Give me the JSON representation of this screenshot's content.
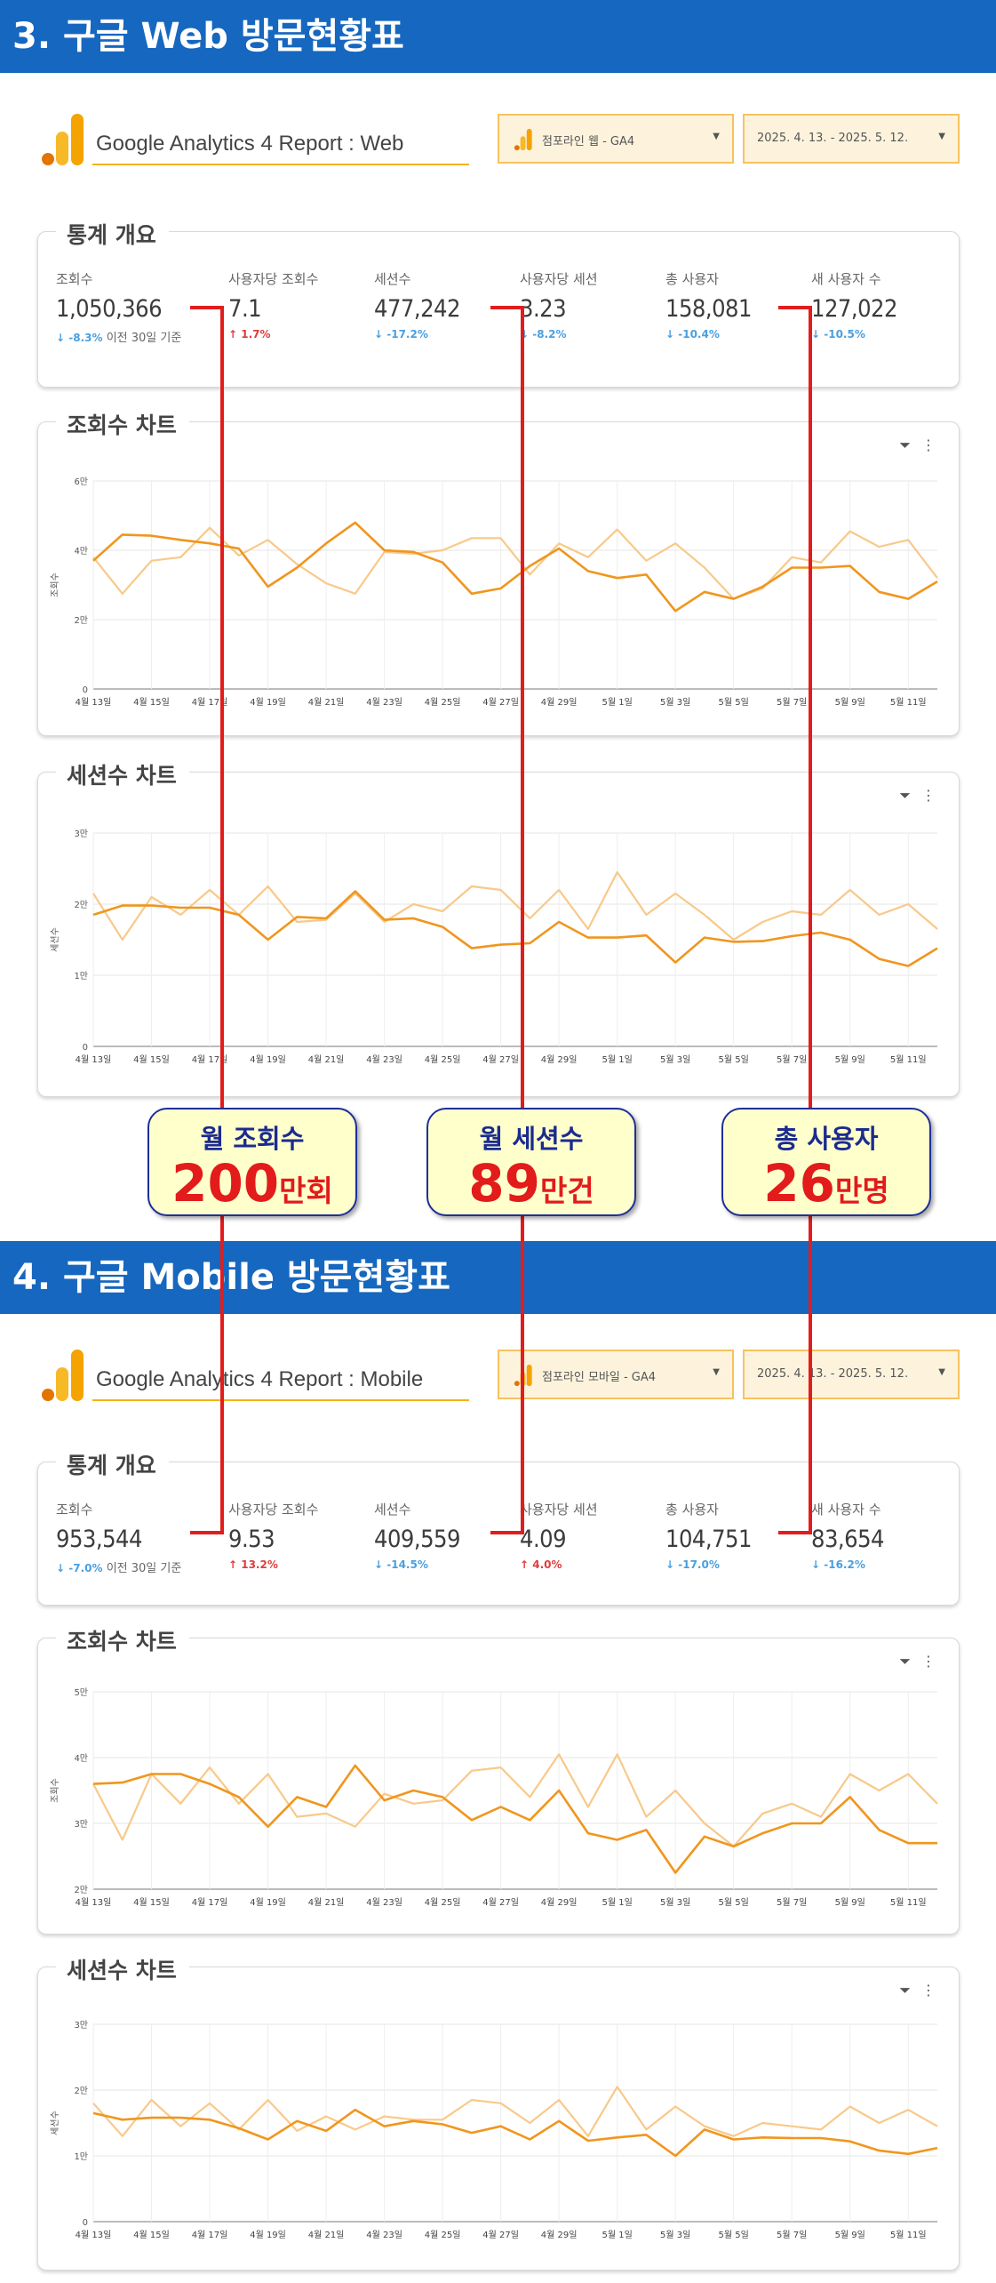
{
  "sections": [
    {
      "banner": "3. 구글 Web 방문현황표",
      "report_title": "Google Analytics 4 Report : Web",
      "property_select": "점포라인 웹 - GA4",
      "date_select": "2025. 4. 13. - 2025. 5. 12.",
      "overview_title": "통계 개요",
      "stats": [
        {
          "label": "조회수",
          "value": "1,050,366",
          "change": "↓ -8.3%",
          "dir": "down",
          "compare": "이전 30일 기준"
        },
        {
          "label": "사용자당 조회수",
          "value": "7.1",
          "change": "↑ 1.7%",
          "dir": "up",
          "compare": ""
        },
        {
          "label": "세션수",
          "value": "477,242",
          "change": "↓ -17.2%",
          "dir": "down",
          "compare": ""
        },
        {
          "label": "사용자당 세션",
          "value": "3.23",
          "change": "↓ -8.2%",
          "dir": "down",
          "compare": ""
        },
        {
          "label": "총 사용자",
          "value": "158,081",
          "change": "↓ -10.4%",
          "dir": "down",
          "compare": ""
        },
        {
          "label": "새 사용자 수",
          "value": "127,022",
          "change": "↓ -10.5%",
          "dir": "down",
          "compare": ""
        }
      ]
    },
    {
      "banner": "4. 구글 Mobile 방문현황표",
      "report_title": "Google Analytics 4 Report : Mobile",
      "property_select": "점포라인 모바일 - GA4",
      "date_select": "2025. 4. 13. - 2025. 5. 12.",
      "overview_title": "통계 개요",
      "stats": [
        {
          "label": "조회수",
          "value": "953,544",
          "change": "↓ -7.0%",
          "dir": "down",
          "compare": "이전 30일 기준"
        },
        {
          "label": "사용자당 조회수",
          "value": "9.53",
          "change": "↑ 13.2%",
          "dir": "up",
          "compare": ""
        },
        {
          "label": "세션수",
          "value": "409,559",
          "change": "↓ -14.5%",
          "dir": "down",
          "compare": ""
        },
        {
          "label": "사용자당 세션",
          "value": "4.09",
          "change": "↑ 4.0%",
          "dir": "up",
          "compare": ""
        },
        {
          "label": "총 사용자",
          "value": "104,751",
          "change": "↓ -17.0%",
          "dir": "down",
          "compare": ""
        },
        {
          "label": "새 사용자 수",
          "value": "83,654",
          "change": "↓ -16.2%",
          "dir": "down",
          "compare": ""
        }
      ]
    }
  ],
  "callouts": [
    {
      "title": "월 조회수",
      "number": "200",
      "unit": "만회"
    },
    {
      "title": "월 세션수",
      "number": "89",
      "unit": "만건"
    },
    {
      "title": "총 사용자",
      "number": "26",
      "unit": "만명"
    }
  ],
  "colors": {
    "banner": "#1667bf",
    "current_line": "#f0961e",
    "previous_line": "#f8c98a",
    "callout_text": "#e21b1b",
    "callout_border": "#1e2f99",
    "connector": "#e11d1d"
  },
  "icons": {
    "filter": "filter-icon",
    "more": "more-vert-icon"
  },
  "chart_data": [
    {
      "type": "line",
      "title": "조회수 차트",
      "ylabel": "조회수",
      "ylim": [
        0,
        60000
      ],
      "yticks": [
        0,
        20000,
        40000,
        60000
      ],
      "ytick_labels": [
        "0",
        "2만",
        "4만",
        "6만"
      ],
      "x": [
        "4월 13일",
        "4월 14일",
        "4월 15일",
        "4월 16일",
        "4월 17일",
        "4월 18일",
        "4월 19일",
        "4월 20일",
        "4월 21일",
        "4월 22일",
        "4월 23일",
        "4월 24일",
        "4월 25일",
        "4월 26일",
        "4월 27일",
        "4월 28일",
        "4월 29일",
        "4월 30일",
        "5월 1일",
        "5월 2일",
        "5월 3일",
        "5월 4일",
        "5월 5일",
        "5월 6일",
        "5월 7일",
        "5월 8일",
        "5월 9일",
        "5월 10일",
        "5월 11일",
        "5월 12일"
      ],
      "xtick_labels": [
        "4월 13일",
        "4월 15일",
        "4월 17일",
        "4월 19일",
        "4월 21일",
        "4월 23일",
        "4월 25일",
        "4월 27일",
        "4월 29일",
        "5월 1일",
        "5월 3일",
        "5월 5일",
        "5월 7일",
        "5월 9일",
        "5월 11일"
      ],
      "series": [
        {
          "values": [
            37000,
            44500,
            44200,
            43000,
            42000,
            40500,
            29500,
            35000,
            42000,
            48000,
            40000,
            39500,
            36500,
            27500,
            29000,
            35500,
            40500,
            34000,
            32000,
            33000,
            22500,
            28000,
            26000,
            29500,
            35000,
            35000,
            35500,
            28000,
            26000,
            31000
          ]
        },
        {
          "values": [
            38000,
            27500,
            37000,
            38000,
            46500,
            38500,
            43000,
            36000,
            30500,
            27500,
            39500,
            39000,
            40000,
            43500,
            43500,
            33000,
            42000,
            38000,
            46000,
            37000,
            42000,
            35000,
            26000,
            29000,
            38000,
            36500,
            45500,
            41000,
            43000,
            32000
          ]
        }
      ]
    },
    {
      "type": "line",
      "title": "세션수 차트",
      "ylabel": "세션수",
      "ylim": [
        0,
        30000
      ],
      "yticks": [
        0,
        10000,
        20000,
        30000
      ],
      "ytick_labels": [
        "0",
        "1만",
        "2만",
        "3만"
      ],
      "x": [
        "4월 13일",
        "4월 14일",
        "4월 15일",
        "4월 16일",
        "4월 17일",
        "4월 18일",
        "4월 19일",
        "4월 20일",
        "4월 21일",
        "4월 22일",
        "4월 23일",
        "4월 24일",
        "4월 25일",
        "4월 26일",
        "4월 27일",
        "4월 28일",
        "4월 29일",
        "4월 30일",
        "5월 1일",
        "5월 2일",
        "5월 3일",
        "5월 4일",
        "5월 5일",
        "5월 6일",
        "5월 7일",
        "5월 8일",
        "5월 9일",
        "5월 10일",
        "5월 11일",
        "5월 12일"
      ],
      "xtick_labels": [
        "4월 13일",
        "4월 15일",
        "4월 17일",
        "4월 19일",
        "4월 21일",
        "4월 23일",
        "4월 25일",
        "4월 27일",
        "4월 29일",
        "5월 1일",
        "5월 3일",
        "5월 5일",
        "5월 7일",
        "5월 9일",
        "5월 11일"
      ],
      "series": [
        {
          "values": [
            18500,
            19800,
            19800,
            19500,
            19500,
            18500,
            15000,
            18200,
            18000,
            21800,
            17800,
            18000,
            16800,
            13800,
            14300,
            14500,
            17500,
            15300,
            15300,
            15600,
            11800,
            15300,
            14700,
            14800,
            15500,
            16000,
            15000,
            12300,
            11300,
            13800
          ]
        },
        {
          "values": [
            21500,
            15000,
            21000,
            18500,
            22000,
            18500,
            22500,
            17500,
            17800,
            21500,
            17500,
            20000,
            19000,
            22500,
            22000,
            18000,
            22000,
            16500,
            24500,
            18500,
            21500,
            18500,
            15000,
            17500,
            19000,
            18500,
            22000,
            18500,
            20000,
            16500
          ]
        }
      ]
    },
    {
      "type": "line",
      "title": "조회수 차트",
      "ylabel": "조회수",
      "ylim": [
        20000,
        50000
      ],
      "yticks": [
        20000,
        30000,
        40000,
        50000
      ],
      "ytick_labels": [
        "2만",
        "3만",
        "4만",
        "5만"
      ],
      "x": [
        "4월 13일",
        "4월 14일",
        "4월 15일",
        "4월 16일",
        "4월 17일",
        "4월 18일",
        "4월 19일",
        "4월 20일",
        "4월 21일",
        "4월 22일",
        "4월 23일",
        "4월 24일",
        "4월 25일",
        "4월 26일",
        "4월 27일",
        "4월 28일",
        "4월 29일",
        "4월 30일",
        "5월 1일",
        "5월 2일",
        "5월 3일",
        "5월 4일",
        "5월 5일",
        "5월 6일",
        "5월 7일",
        "5월 8일",
        "5월 9일",
        "5월 10일",
        "5월 11일",
        "5월 12일"
      ],
      "xtick_labels": [
        "4월 13일",
        "4월 15일",
        "4월 17일",
        "4월 19일",
        "4월 21일",
        "4월 23일",
        "4월 25일",
        "4월 27일",
        "4월 29일",
        "5월 1일",
        "5월 3일",
        "5월 5일",
        "5월 7일",
        "5월 9일",
        "5월 11일"
      ],
      "series": [
        {
          "values": [
            36000,
            36200,
            37500,
            37500,
            36000,
            34000,
            29500,
            34000,
            32500,
            38800,
            33500,
            35000,
            34000,
            30500,
            32500,
            30500,
            35000,
            28500,
            27500,
            29000,
            22500,
            28000,
            26500,
            28500,
            30000,
            30000,
            34000,
            29000,
            27000,
            27000
          ]
        },
        {
          "values": [
            36000,
            27500,
            37500,
            33000,
            38500,
            33000,
            37500,
            31000,
            31500,
            29500,
            34500,
            33000,
            33500,
            38000,
            38500,
            34000,
            40500,
            32500,
            40500,
            31000,
            35000,
            30000,
            26500,
            31500,
            33000,
            31000,
            37500,
            35000,
            37500,
            33000
          ]
        }
      ]
    },
    {
      "type": "line",
      "title": "세션수 차트",
      "ylabel": "세션수",
      "ylim": [
        0,
        30000
      ],
      "yticks": [
        0,
        10000,
        20000,
        30000
      ],
      "ytick_labels": [
        "0",
        "1만",
        "2만",
        "3만"
      ],
      "x": [
        "4월 13일",
        "4월 14일",
        "4월 15일",
        "4월 16일",
        "4월 17일",
        "4월 18일",
        "4월 19일",
        "4월 20일",
        "4월 21일",
        "4월 22일",
        "4월 23일",
        "4월 24일",
        "4월 25일",
        "4월 26일",
        "4월 27일",
        "4월 28일",
        "4월 29일",
        "4월 30일",
        "5월 1일",
        "5월 2일",
        "5월 3일",
        "5월 4일",
        "5월 5일",
        "5월 6일",
        "5월 7일",
        "5월 8일",
        "5월 9일",
        "5월 10일",
        "5월 11일",
        "5월 12일"
      ],
      "xtick_labels": [
        "4월 13일",
        "4월 15일",
        "4월 17일",
        "4월 19일",
        "4월 21일",
        "4월 23일",
        "4월 25일",
        "4월 27일",
        "4월 29일",
        "5월 1일",
        "5월 3일",
        "5월 5일",
        "5월 7일",
        "5월 9일",
        "5월 11일"
      ],
      "series": [
        {
          "values": [
            16500,
            15500,
            15800,
            15800,
            15500,
            14200,
            12500,
            15300,
            13800,
            17000,
            14500,
            15300,
            14800,
            13500,
            14500,
            12500,
            15300,
            12300,
            12800,
            13200,
            10000,
            14000,
            12500,
            12800,
            12700,
            12700,
            12200,
            10800,
            10300,
            11200
          ]
        },
        {
          "values": [
            18000,
            13000,
            18500,
            14500,
            18000,
            14000,
            18500,
            13800,
            16000,
            14000,
            16000,
            15500,
            15500,
            18500,
            18000,
            15000,
            18500,
            13000,
            20500,
            14000,
            17500,
            14500,
            13000,
            15000,
            14500,
            14000,
            17500,
            15000,
            17000,
            14500
          ]
        }
      ]
    }
  ]
}
